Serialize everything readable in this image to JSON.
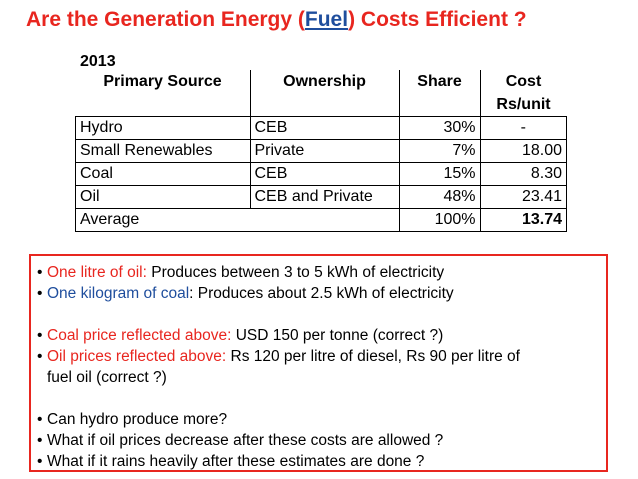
{
  "title": {
    "prefix": "Are the Generation Energy ",
    "open_paren": "(",
    "fuel": "Fuel",
    "close_paren": ")",
    "suffix": " Costs Efficient ?"
  },
  "table": {
    "year": "2013",
    "headers": {
      "primary_source": "Primary Source",
      "ownership": "Ownership",
      "share": "Share",
      "cost_line1": "Cost",
      "cost_line2": "Rs/unit"
    },
    "rows": [
      {
        "source": "Hydro",
        "ownership": "CEB",
        "share": "30%",
        "cost": "-"
      },
      {
        "source": "Small Renewables",
        "ownership": "Private",
        "share": "7%",
        "cost": "18.00"
      },
      {
        "source": "Coal",
        "ownership": "CEB",
        "share": "15%",
        "cost": "8.30"
      },
      {
        "source": "Oil",
        "ownership": "CEB and Private",
        "share": "48%",
        "cost": "23.41"
      }
    ],
    "average": {
      "label": "Average",
      "share": "100%",
      "cost": "13.74"
    }
  },
  "notes": {
    "bullet": "•",
    "oil_litre": {
      "label": "One litre of oil:",
      "text": " Produces between 3 to 5 kWh of electricity"
    },
    "coal_kg": {
      "label": "One kilogram of coal",
      "text": ": Produces about 2.5 kWh of electricity"
    },
    "coal_price": {
      "label": "Coal price reflected above:",
      "text": " USD 150 per tonne (correct ?)"
    },
    "oil_price": {
      "label": "Oil prices reflected above:",
      "text": " Rs 120 per litre of diesel, Rs 90 per litre of",
      "text2": "fuel oil (correct ?)"
    },
    "q1": "Can hydro produce more?",
    "q2": "What if oil prices decrease after these costs are allowed ?",
    "q3": "What if it rains heavily after these estimates are done ?"
  },
  "colors": {
    "title_red": "#e8261f",
    "accent_blue": "#1f4e9d"
  }
}
